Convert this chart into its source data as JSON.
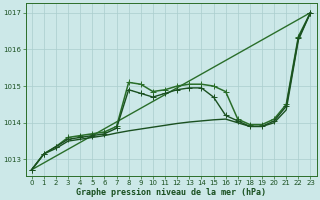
{
  "background_color": "#cce8e8",
  "grid_color": "#aacece",
  "xlabel": "Graphe pression niveau de la mer (hPa)",
  "xlim": [
    -0.5,
    23.5
  ],
  "ylim": [
    1012.55,
    1017.25
  ],
  "yticks": [
    1013,
    1014,
    1015,
    1016,
    1017
  ],
  "xtick_labels": [
    "0",
    "1",
    "2",
    "3",
    "4",
    "5",
    "6",
    "7",
    "8",
    "9",
    "10",
    "11",
    "12",
    "13",
    "14",
    "15",
    "16",
    "17",
    "18",
    "19",
    "20",
    "21",
    "22",
    "23"
  ],
  "xticks": [
    0,
    1,
    2,
    3,
    4,
    5,
    6,
    7,
    8,
    9,
    10,
    11,
    12,
    13,
    14,
    15,
    16,
    17,
    18,
    19,
    20,
    21,
    22,
    23
  ],
  "series": [
    {
      "x": [
        0,
        1,
        2,
        3,
        4,
        5,
        6,
        7,
        8,
        9,
        10,
        11,
        12,
        13,
        14,
        15,
        16,
        17,
        18,
        19,
        20,
        21,
        22,
        23
      ],
      "y": [
        1012.72,
        1013.15,
        1013.35,
        1013.6,
        1013.65,
        1013.7,
        1013.75,
        1013.9,
        1015.1,
        1015.05,
        1014.85,
        1014.9,
        1015.0,
        1015.05,
        1015.05,
        1015.0,
        1014.85,
        1014.1,
        1013.95,
        1013.95,
        1014.1,
        1014.5,
        1016.35,
        1017.0
      ],
      "marker": "+",
      "color": "#2a6e2a",
      "lw": 1.1,
      "ms": 4.5
    },
    {
      "x": [
        0,
        1,
        2,
        3,
        4,
        5,
        6,
        7,
        8,
        9,
        10,
        11,
        12,
        13,
        14,
        15,
        16,
        17,
        18,
        19,
        20,
        21,
        22,
        23
      ],
      "y": [
        1012.72,
        1013.15,
        1013.35,
        1013.55,
        1013.6,
        1013.65,
        1013.7,
        1013.85,
        1014.9,
        1014.8,
        1014.7,
        1014.8,
        1014.9,
        1014.95,
        1014.95,
        1014.7,
        1014.2,
        1014.05,
        1013.9,
        1013.9,
        1014.05,
        1014.45,
        1016.3,
        1017.0
      ],
      "marker": "+",
      "color": "#1a5020",
      "lw": 1.0,
      "ms": 4.0
    },
    {
      "x": [
        0,
        23
      ],
      "y": [
        1012.72,
        1017.0
      ],
      "marker": null,
      "color": "#2a6e2a",
      "lw": 1.0,
      "ms": 0
    },
    {
      "x": [
        0,
        1,
        2,
        3,
        4,
        5,
        6,
        7,
        8,
        9,
        10,
        11,
        12,
        13,
        14,
        15,
        16,
        17,
        18,
        19,
        20,
        21,
        22,
        23
      ],
      "y": [
        1012.72,
        1013.15,
        1013.3,
        1013.5,
        1013.55,
        1013.6,
        1013.65,
        1013.72,
        1013.78,
        1013.83,
        1013.88,
        1013.93,
        1013.98,
        1014.02,
        1014.05,
        1014.08,
        1014.1,
        1014.0,
        1013.9,
        1013.9,
        1014.0,
        1014.35,
        1016.25,
        1017.0
      ],
      "marker": null,
      "color": "#1a5020",
      "lw": 1.0,
      "ms": 0
    }
  ]
}
